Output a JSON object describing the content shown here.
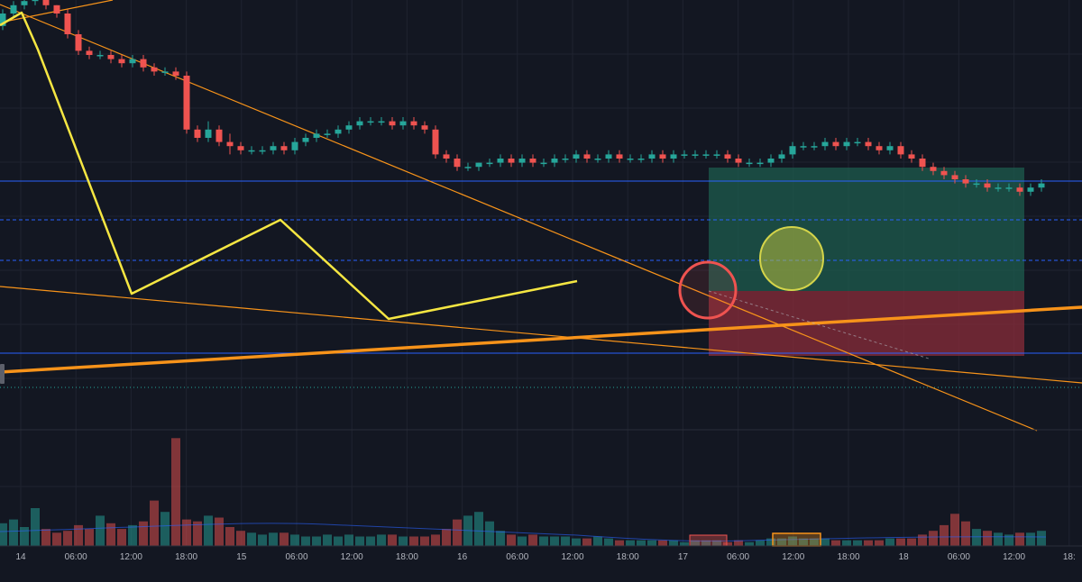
{
  "theme": {
    "background": "#131722",
    "grid": "#1f2330",
    "up_color": "#26a69a",
    "down_color": "#ef5350",
    "pattern_line": "#f5e642",
    "trend_line": "#f7931a",
    "level_line": "#2962ff",
    "target_zone": "#1e5c4e",
    "stop_zone": "#8a2c3a"
  },
  "chart_data": {
    "type": "candlestick",
    "title": "",
    "xlabel": "",
    "ylabel": "",
    "grid": true,
    "x_axis_labels": [
      "14",
      "06:00",
      "12:00",
      "18:00",
      "15",
      "06:00",
      "12:00",
      "18:00",
      "16",
      "06:00",
      "12:00",
      "18:00",
      "17",
      "06:00",
      "12:00",
      "18:00",
      "18",
      "06:00",
      "12:00",
      "18:"
    ],
    "price_series": {
      "open": [
        97,
        100,
        102,
        103,
        104,
        102,
        100,
        95,
        91,
        90,
        90,
        89,
        88,
        89,
        87,
        86,
        86,
        85,
        72,
        70,
        72,
        69,
        68,
        67,
        67,
        67,
        68,
        67,
        69,
        70,
        71,
        71,
        72,
        73,
        74,
        74,
        74,
        73,
        74,
        73,
        72,
        66,
        65,
        63,
        63,
        64,
        64,
        65,
        64,
        65,
        64,
        64,
        65,
        65,
        66,
        65,
        65,
        66,
        65,
        65,
        65,
        66,
        65,
        66,
        66,
        66,
        66,
        66,
        65,
        64,
        64,
        64,
        65,
        66,
        68,
        68,
        68,
        69,
        68,
        69,
        69,
        68,
        67,
        68,
        66,
        65,
        63,
        62,
        61,
        60,
        59,
        59,
        58,
        58,
        58,
        57,
        58
      ],
      "close": [
        100,
        102,
        103,
        104,
        102,
        100,
        95,
        91,
        90,
        90,
        89,
        88,
        89,
        87,
        86,
        86,
        85,
        72,
        70,
        72,
        69,
        68,
        67,
        67,
        67,
        68,
        67,
        69,
        70,
        71,
        71,
        72,
        73,
        74,
        74,
        74,
        73,
        74,
        73,
        72,
        66,
        65,
        63,
        63,
        64,
        64,
        65,
        64,
        65,
        64,
        64,
        65,
        65,
        66,
        65,
        65,
        66,
        65,
        65,
        65,
        66,
        65,
        66,
        66,
        66,
        66,
        66,
        65,
        64,
        64,
        64,
        65,
        66,
        68,
        68,
        68,
        69,
        68,
        69,
        69,
        68,
        67,
        68,
        66,
        65,
        63,
        62,
        61,
        60,
        59,
        59,
        58,
        58,
        58,
        57,
        58,
        59
      ],
      "high": [
        101,
        103,
        104,
        105,
        104,
        102,
        101,
        96,
        92,
        91,
        91,
        90,
        90,
        90,
        88,
        87,
        87,
        86,
        73,
        74,
        73,
        71,
        69,
        68,
        68,
        69,
        69,
        70,
        71,
        72,
        72,
        73,
        74,
        75,
        75,
        75,
        75,
        75,
        75,
        74,
        73,
        67,
        66,
        64,
        64,
        65,
        66,
        66,
        66,
        66,
        65,
        66,
        66,
        67,
        67,
        66,
        67,
        67,
        66,
        66,
        67,
        67,
        67,
        67,
        67,
        67,
        67,
        67,
        66,
        65,
        65,
        66,
        67,
        69,
        69,
        69,
        70,
        70,
        70,
        70,
        70,
        69,
        69,
        69,
        67,
        66,
        64,
        63,
        62,
        61,
        60,
        60,
        59,
        59,
        59,
        59,
        60
      ],
      "low": [
        96,
        99,
        101,
        102,
        101,
        99,
        94,
        90,
        89,
        89,
        88,
        87,
        87,
        86,
        85,
        85,
        84,
        71,
        69,
        69,
        68,
        66,
        66,
        66,
        66,
        66,
        66,
        66,
        68,
        69,
        70,
        70,
        71,
        72,
        73,
        73,
        72,
        72,
        72,
        71,
        65,
        64,
        62,
        62,
        62,
        63,
        63,
        63,
        63,
        63,
        63,
        63,
        64,
        64,
        64,
        64,
        64,
        64,
        64,
        64,
        64,
        64,
        64,
        65,
        65,
        65,
        65,
        64,
        63,
        63,
        63,
        63,
        64,
        65,
        67,
        67,
        67,
        67,
        67,
        68,
        67,
        66,
        66,
        65,
        64,
        62,
        61,
        60,
        59,
        58,
        58,
        57,
        57,
        57,
        56,
        56,
        57
      ]
    },
    "volume": [
      12,
      14,
      10,
      20,
      9,
      7,
      8,
      11,
      9,
      16,
      12,
      9,
      11,
      13,
      24,
      18,
      57,
      14,
      13,
      16,
      15,
      10,
      8,
      7,
      6,
      7,
      7,
      6,
      5,
      5,
      6,
      5,
      6,
      5,
      5,
      6,
      6,
      5,
      5,
      5,
      6,
      9,
      14,
      16,
      18,
      13,
      8,
      6,
      5,
      6,
      5,
      5,
      5,
      4,
      4,
      5,
      4,
      3,
      3,
      3,
      3,
      3,
      3,
      2,
      3,
      3,
      3,
      2,
      3,
      2,
      3,
      4,
      4,
      5,
      4,
      4,
      4,
      3,
      3,
      3,
      3,
      3,
      4,
      4,
      4,
      6,
      8,
      11,
      17,
      13,
      9,
      8,
      7,
      6,
      7,
      7,
      8
    ]
  }
}
